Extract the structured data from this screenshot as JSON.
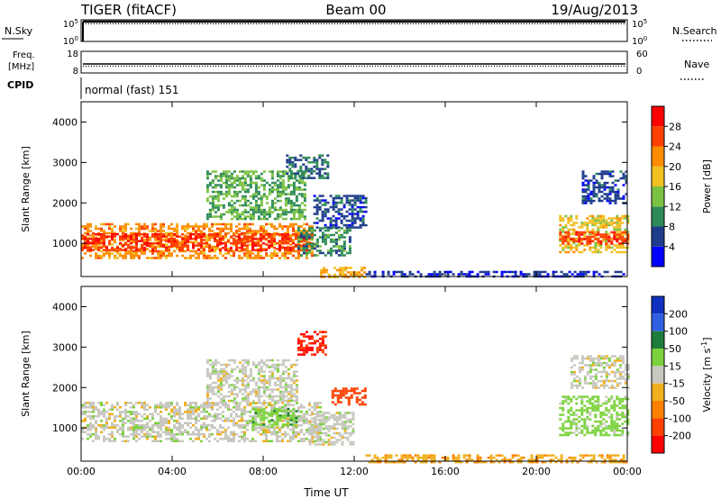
{
  "header": {
    "radar": "TIGER (fitACF)",
    "beam": "Beam 00",
    "date": "19/Aug/2013"
  },
  "strips": {
    "nsky": {
      "label": "N.Sky",
      "ticks": [
        "10^5",
        "10^0"
      ]
    },
    "nsearch": {
      "label": "N.Search",
      "ticks": [
        "10^5",
        "10^0"
      ]
    },
    "freq": {
      "label_line1": "Freq.",
      "label_line2": "[MHz]",
      "ticks": [
        "18",
        "8"
      ]
    },
    "nave": {
      "label": "Nave",
      "ticks": [
        "60",
        "0"
      ]
    },
    "cpid": {
      "label": "CPID",
      "value": "normal (fast) 151"
    }
  },
  "chart_data": [
    {
      "type": "heatmap",
      "panel": "power",
      "ylabel": "Slant Range [km]",
      "yticks": [
        1000,
        2000,
        3000,
        4000
      ],
      "ylim": [
        180,
        4500
      ],
      "xticks": [
        "00:00",
        "04:00",
        "08:00",
        "12:00",
        "16:00",
        "20:00",
        "00:00"
      ],
      "xlim_hours": [
        0,
        24
      ],
      "colorbar": {
        "label": "Power [dB]",
        "ticks": [
          4,
          8,
          12,
          16,
          20,
          24,
          28
        ],
        "range": [
          0,
          32
        ],
        "colors": [
          "#0000ff",
          "#1e3c8c",
          "#2e8b57",
          "#7cc242",
          "#f0c020",
          "#ff8c00",
          "#ff4000",
          "#ff0000"
        ]
      },
      "regions": [
        {
          "t0": 0.0,
          "t1": 10.2,
          "r0": 650,
          "r1": 1500,
          "v": 22
        },
        {
          "t0": 0.0,
          "t1": 10.2,
          "r0": 850,
          "r1": 1250,
          "v": 27
        },
        {
          "t0": 5.5,
          "t1": 9.8,
          "r0": 1600,
          "r1": 2800,
          "v": 12
        },
        {
          "t0": 9.0,
          "t1": 10.8,
          "r0": 2600,
          "r1": 3200,
          "v": 8
        },
        {
          "t0": 9.5,
          "t1": 11.8,
          "r0": 700,
          "r1": 1400,
          "v": 10
        },
        {
          "t0": 10.2,
          "t1": 12.5,
          "r0": 1400,
          "r1": 2200,
          "v": 6
        },
        {
          "t0": 10.5,
          "t1": 12.5,
          "r0": 180,
          "r1": 420,
          "v": 20
        },
        {
          "t0": 12.5,
          "t1": 24.0,
          "r0": 180,
          "r1": 320,
          "v": 5
        },
        {
          "t0": 21.0,
          "t1": 24.0,
          "r0": 800,
          "r1": 1700,
          "v": 18
        },
        {
          "t0": 21.0,
          "t1": 24.0,
          "r0": 1000,
          "r1": 1300,
          "v": 27
        },
        {
          "t0": 22.0,
          "t1": 24.0,
          "r0": 2000,
          "r1": 2800,
          "v": 6
        }
      ]
    },
    {
      "type": "heatmap",
      "panel": "velocity",
      "ylabel": "Slant Range [km]",
      "yticks": [
        1000,
        2000,
        3000,
        4000
      ],
      "ylim": [
        180,
        4500
      ],
      "xticks": [
        "00:00",
        "04:00",
        "08:00",
        "12:00",
        "16:00",
        "20:00",
        "00:00"
      ],
      "xlim_hours": [
        0,
        24
      ],
      "xlabel": "Time UT",
      "colorbar": {
        "label": "Velocity [m s^-1]",
        "ticks": [
          200,
          100,
          50,
          15,
          -15,
          -50,
          -100,
          -200
        ],
        "colors": [
          "#1030c0",
          "#3060e0",
          "#1e7c3c",
          "#7cd23c",
          "#c8c8c0",
          "#f0b020",
          "#ff8000",
          "#ff4000",
          "#ff0000"
        ]
      },
      "regions": [
        {
          "t0": 0.0,
          "t1": 10.5,
          "r0": 650,
          "r1": 1650,
          "v": 0
        },
        {
          "t0": 5.5,
          "t1": 9.5,
          "r0": 1600,
          "r1": 2700,
          "v": 0
        },
        {
          "t0": 7.5,
          "t1": 9.5,
          "r0": 1000,
          "r1": 1500,
          "v": 40
        },
        {
          "t0": 9.5,
          "t1": 10.8,
          "r0": 2800,
          "r1": 3400,
          "v": -200
        },
        {
          "t0": 11.0,
          "t1": 12.5,
          "r0": 1600,
          "r1": 2000,
          "v": -150
        },
        {
          "t0": 10.0,
          "t1": 12.0,
          "r0": 600,
          "r1": 1400,
          "v": 0
        },
        {
          "t0": 12.5,
          "t1": 24.0,
          "r0": 180,
          "r1": 350,
          "v": -40
        },
        {
          "t0": 21.0,
          "t1": 24.0,
          "r0": 800,
          "r1": 1800,
          "v": 30
        },
        {
          "t0": 21.5,
          "t1": 24.0,
          "r0": 2000,
          "r1": 2800,
          "v": 0
        }
      ]
    }
  ]
}
